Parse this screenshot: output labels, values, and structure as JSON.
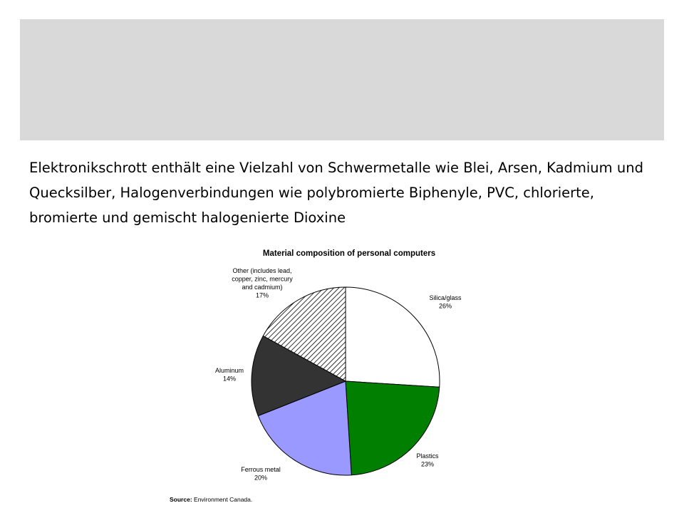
{
  "slide": {
    "body_text": "Elektronikschrott enthält eine Vielzahl von Schwermetalle wie Blei, Arsen, Kadmium und Quecksilber, Halogenverbindungen wie polybromierte Biphenyle, PVC, chlorierte, bromierte und gemischt halogenierte Dioxine"
  },
  "chart_data": {
    "type": "pie",
    "title": "Material composition of personal computers",
    "slices": [
      {
        "label_lines": [
          "Silica/glass"
        ],
        "value": 26,
        "value_label": "26%",
        "color": "#ffffff",
        "pattern": "none"
      },
      {
        "label_lines": [
          "Plastics"
        ],
        "value": 23,
        "value_label": "23%",
        "color": "#007f00",
        "pattern": "none"
      },
      {
        "label_lines": [
          "Ferrous metal"
        ],
        "value": 20,
        "value_label": "20%",
        "color": "#9999ff",
        "pattern": "none"
      },
      {
        "label_lines": [
          "Aluminum"
        ],
        "value": 14,
        "value_label": "14%",
        "color": "#333333",
        "pattern": "none"
      },
      {
        "label_lines": [
          "Other (includes lead,",
          "copper, zinc, mercury",
          "and cadmium)"
        ],
        "value": 17,
        "value_label": "17%",
        "color": "#ffffff",
        "pattern": "diagonal-hatch"
      }
    ],
    "source_label": "Source:",
    "source_text": "Environment Canada."
  }
}
